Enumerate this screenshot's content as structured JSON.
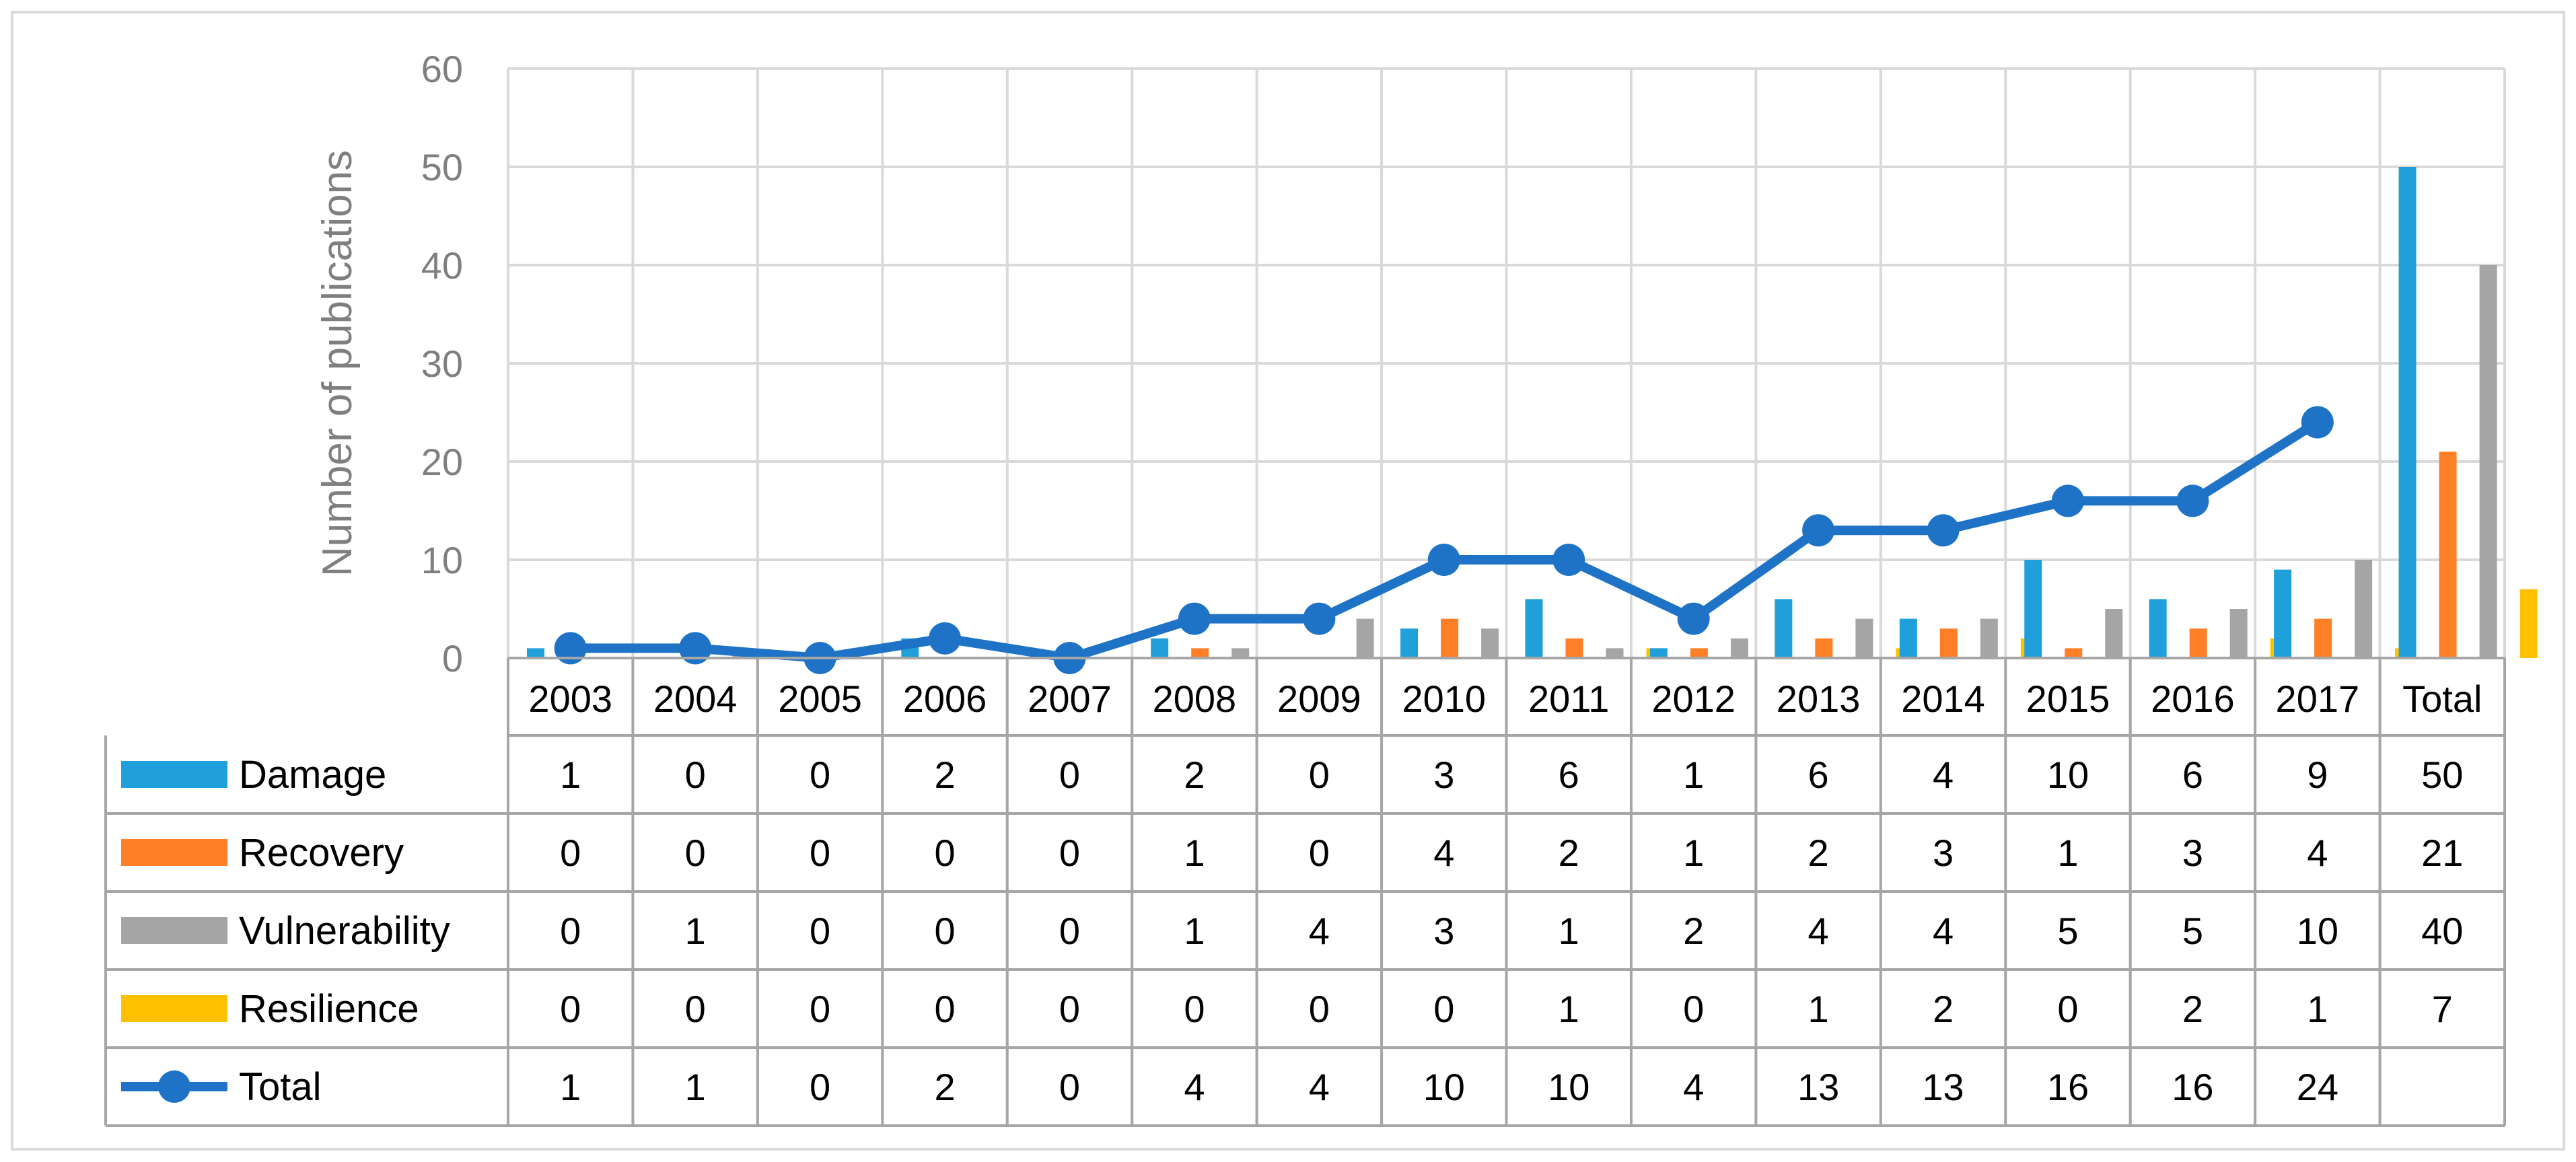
{
  "chart_data": {
    "type": "bar",
    "ylabel": "Number of publications",
    "ylim": [
      0,
      60
    ],
    "yticks": [
      "0",
      "10",
      "20",
      "30",
      "40",
      "50",
      "60"
    ],
    "grid": true,
    "categories": [
      "2003",
      "2004",
      "2005",
      "2006",
      "2007",
      "2008",
      "2009",
      "2010",
      "2011",
      "2012",
      "2013",
      "2014",
      "2015",
      "2016",
      "2017",
      "Total"
    ],
    "series": [
      {
        "name": "Damage",
        "color": "#1fa0db",
        "values": [
          1,
          0,
          0,
          2,
          0,
          2,
          0,
          3,
          6,
          1,
          6,
          4,
          10,
          6,
          9,
          50
        ]
      },
      {
        "name": "Recovery",
        "color": "#ff7f27",
        "values": [
          0,
          0,
          0,
          0,
          0,
          1,
          0,
          4,
          2,
          1,
          2,
          3,
          1,
          3,
          4,
          21
        ]
      },
      {
        "name": "Vulnerability",
        "color": "#a5a5a5",
        "values": [
          0,
          1,
          0,
          0,
          0,
          1,
          4,
          3,
          1,
          2,
          4,
          4,
          5,
          5,
          10,
          40
        ]
      },
      {
        "name": "Resilience",
        "color": "#ffc000",
        "values": [
          0,
          0,
          0,
          0,
          0,
          0,
          0,
          0,
          1,
          0,
          1,
          2,
          0,
          2,
          1,
          7
        ]
      }
    ],
    "line": {
      "name": "Total",
      "color": "#1e73c6",
      "values": [
        1,
        1,
        0,
        2,
        0,
        4,
        4,
        10,
        10,
        4,
        13,
        13,
        16,
        16,
        24,
        null
      ],
      "labels": [
        "1",
        "1",
        "0",
        "2",
        "0",
        "4",
        "4",
        "10",
        "10",
        "4",
        "13",
        "13",
        "16",
        "16",
        "24",
        ""
      ]
    }
  }
}
